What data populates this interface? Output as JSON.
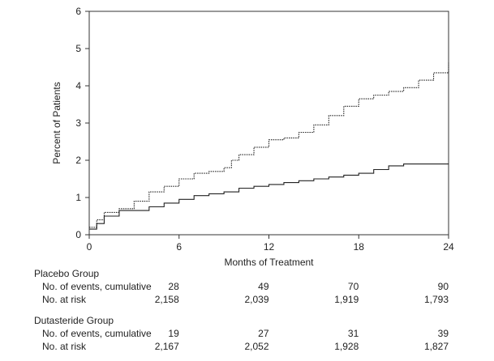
{
  "chart_data": {
    "type": "line",
    "title": "",
    "xlabel": "Months of Treatment",
    "ylabel": "Percent of Patients",
    "xlim": [
      0,
      24
    ],
    "ylim": [
      0,
      6
    ],
    "xticks": [
      0,
      6,
      12,
      18,
      24
    ],
    "yticks": [
      0,
      1,
      2,
      3,
      4,
      5,
      6
    ],
    "grid": false,
    "series": [
      {
        "style": "dotted",
        "color": "#222222",
        "x": [
          0,
          0.5,
          1,
          2,
          3,
          4,
          5,
          6,
          7,
          8,
          9,
          9.5,
          10,
          11,
          12,
          13,
          14,
          15,
          16,
          17,
          18,
          19,
          20,
          21,
          22,
          23,
          24
        ],
        "y": [
          0.2,
          0.4,
          0.6,
          0.7,
          0.9,
          1.15,
          1.3,
          1.5,
          1.65,
          1.7,
          1.8,
          2.0,
          2.15,
          2.35,
          2.55,
          2.6,
          2.75,
          2.95,
          3.2,
          3.45,
          3.65,
          3.75,
          3.85,
          3.95,
          4.15,
          4.35,
          4.62
        ]
      },
      {
        "style": "solid",
        "color": "#222222",
        "x": [
          0,
          0.5,
          1,
          2,
          3,
          4,
          5,
          6,
          7,
          8,
          9,
          10,
          11,
          12,
          13,
          14,
          15,
          16,
          17,
          18,
          19,
          20,
          21,
          22,
          23,
          24
        ],
        "y": [
          0.15,
          0.3,
          0.5,
          0.65,
          0.65,
          0.75,
          0.85,
          0.95,
          1.05,
          1.1,
          1.15,
          1.25,
          1.3,
          1.35,
          1.4,
          1.45,
          1.5,
          1.55,
          1.6,
          1.65,
          1.75,
          1.85,
          1.9,
          1.9,
          1.9,
          1.9
        ]
      }
    ]
  },
  "table": {
    "months": [
      6,
      12,
      18,
      24
    ],
    "groups": [
      {
        "name": "Placebo Group",
        "rows": [
          {
            "label": "No. of events, cumulative",
            "values": [
              "28",
              "49",
              "70",
              "90"
            ]
          },
          {
            "label": "No. at risk",
            "values": [
              "2,158",
              "2,039",
              "1,919",
              "1,793"
            ]
          }
        ]
      },
      {
        "name": "Dutasteride Group",
        "rows": [
          {
            "label": "No. of events, cumulative",
            "values": [
              "19",
              "27",
              "31",
              "39"
            ]
          },
          {
            "label": "No. at risk",
            "values": [
              "2,167",
              "2,052",
              "1,928",
              "1,827"
            ]
          }
        ]
      }
    ]
  }
}
